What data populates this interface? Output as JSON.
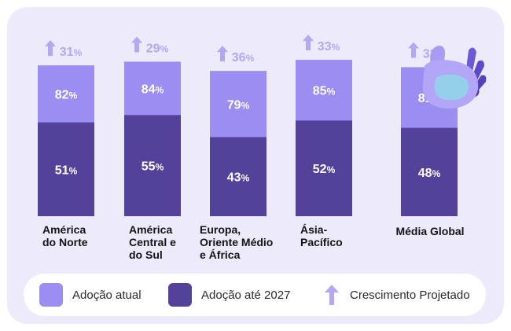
{
  "colors": {
    "current": "#9c8df2",
    "by2027": "#54419a",
    "growth": "#b3a8f2",
    "card_bg": "#eceafb",
    "label_text": "#141414",
    "bar_text": "#ffffff"
  },
  "chart_data": {
    "type": "bar",
    "stacked": "overlay",
    "categories": [
      "América\ndo Norte",
      "América\nCentral e\ndo Sul",
      "Europa,\nOriente Médio\ne África",
      "Ásia-\nPacífico",
      "Média Global"
    ],
    "series": [
      {
        "name": "Adoção atual",
        "values": [
          51,
          55,
          43,
          52,
          48
        ],
        "value_labels": [
          "51",
          "55",
          "43",
          "52",
          "48"
        ]
      },
      {
        "name": "Adoção até 2027",
        "values": [
          82,
          84,
          79,
          85,
          81
        ],
        "value_labels": [
          "82",
          "84",
          "79",
          "85",
          "81"
        ]
      }
    ],
    "growth": {
      "name": "Crescimento Projetado",
      "values": [
        31,
        29,
        36,
        33,
        33
      ],
      "value_labels": [
        "31",
        "29",
        "36",
        "33",
        "33"
      ]
    },
    "unit": "%",
    "ylim": [
      0,
      100
    ],
    "grid": false,
    "legend_position": "bottom"
  },
  "legend": {
    "items": [
      {
        "label": "Adoção atual",
        "type": "swatch",
        "color": "#9c8df2"
      },
      {
        "label": "Adoção até 2027",
        "type": "swatch",
        "color": "#54419a"
      },
      {
        "label": "Crescimento Projetado",
        "type": "arrow",
        "color": "#b3a8f2"
      }
    ]
  },
  "decoration": {
    "icon": "robot-hand-icon"
  }
}
